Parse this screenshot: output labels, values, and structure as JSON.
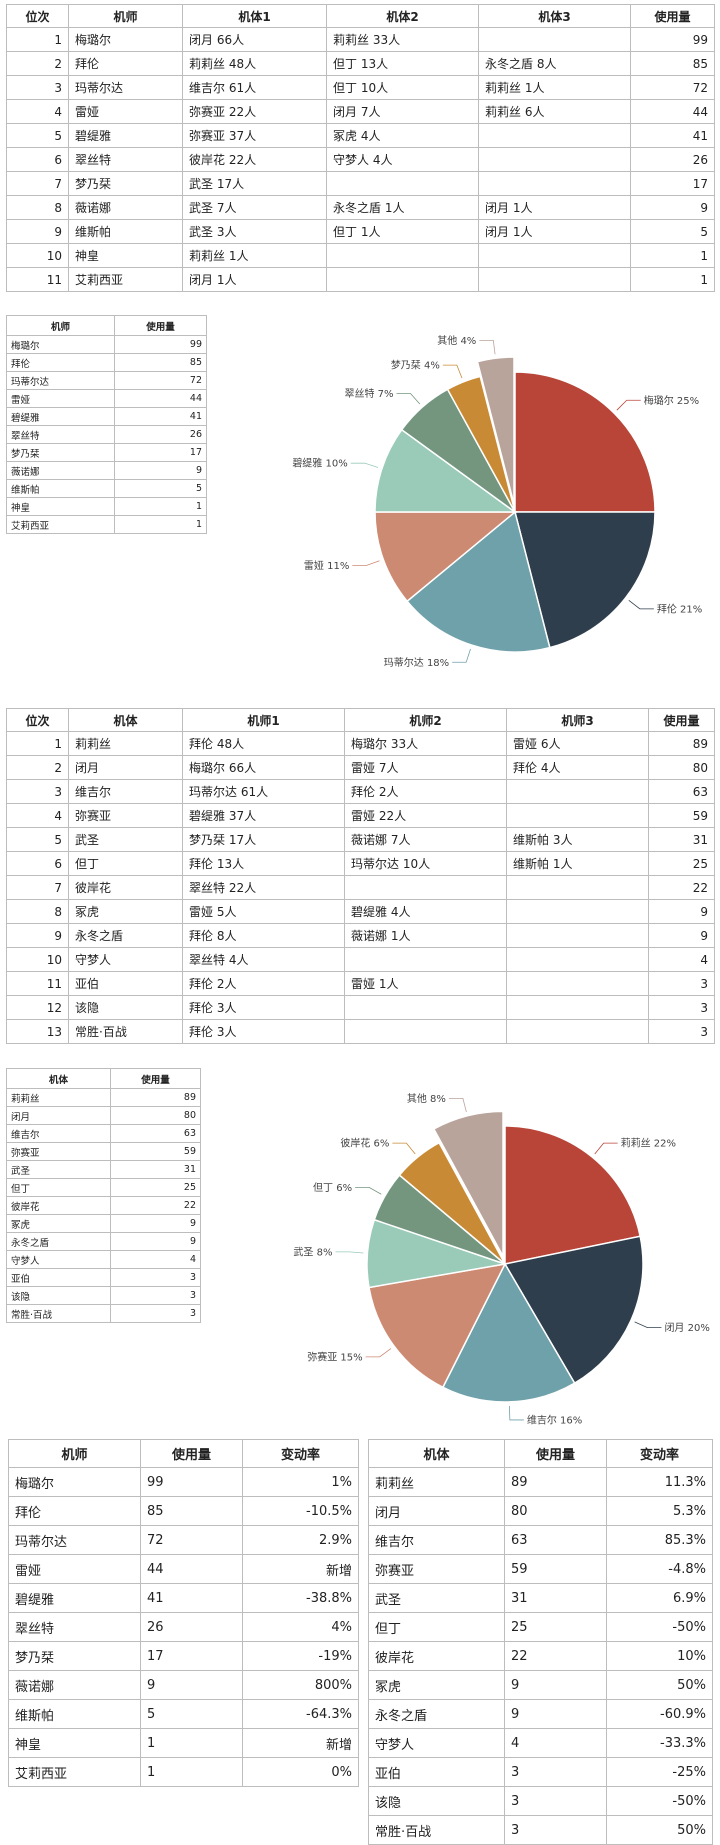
{
  "table1": {
    "headers": [
      "位次",
      "机师",
      "机体1",
      "机体2",
      "机体3",
      "使用量"
    ],
    "rows": [
      [
        "1",
        "梅璐尔",
        "闭月 66人",
        "莉莉丝 33人",
        "",
        "99"
      ],
      [
        "2",
        "拜伦",
        "莉莉丝 48人",
        "但丁 13人",
        "永冬之盾 8人",
        "85"
      ],
      [
        "3",
        "玛蒂尔达",
        "维吉尔 61人",
        "但丁 10人",
        "莉莉丝 1人",
        "72"
      ],
      [
        "4",
        "雷娅",
        "弥赛亚 22人",
        "闭月 7人",
        "莉莉丝 6人",
        "44"
      ],
      [
        "5",
        "碧缇雅",
        "弥赛亚 37人",
        "冢虎 4人",
        "",
        "41"
      ],
      [
        "6",
        "翠丝特",
        "彼岸花 22人",
        "守梦人 4人",
        "",
        "26"
      ],
      [
        "7",
        "梦乃栞",
        "武圣 17人",
        "",
        "",
        "17"
      ],
      [
        "8",
        "薇诺娜",
        "武圣 7人",
        "永冬之盾 1人",
        "闭月 1人",
        "9"
      ],
      [
        "9",
        "维斯帕",
        "武圣 3人",
        "但丁 1人",
        "闭月 1人",
        "5"
      ],
      [
        "10",
        "神皇",
        "莉莉丝 1人",
        "",
        "",
        "1"
      ],
      [
        "11",
        "艾莉西亚",
        "闭月 1人",
        "",
        "",
        "1"
      ]
    ]
  },
  "small1": {
    "headers": [
      "机师",
      "使用量"
    ],
    "rows": [
      [
        "梅璐尔",
        "99"
      ],
      [
        "拜伦",
        "85"
      ],
      [
        "玛蒂尔达",
        "72"
      ],
      [
        "雷娅",
        "44"
      ],
      [
        "碧缇雅",
        "41"
      ],
      [
        "翠丝特",
        "26"
      ],
      [
        "梦乃栞",
        "17"
      ],
      [
        "薇诺娜",
        "9"
      ],
      [
        "维斯帕",
        "5"
      ],
      [
        "神皇",
        "1"
      ],
      [
        "艾莉西亚",
        "1"
      ]
    ]
  },
  "chart_data": [
    {
      "type": "pie",
      "slices": [
        {
          "label": "梅璐尔 25%",
          "value": 25,
          "color": "#b84538"
        },
        {
          "label": "拜伦 21%",
          "value": 21,
          "color": "#2f3e4d"
        },
        {
          "label": "玛蒂尔达 18%",
          "value": 18,
          "color": "#6fa1aa"
        },
        {
          "label": "雷娅 11%",
          "value": 11,
          "color": "#cd8a72"
        },
        {
          "label": "碧缇雅 10%",
          "value": 10,
          "color": "#9acbb8"
        },
        {
          "label": "翠丝特 7%",
          "value": 7,
          "color": "#74967f"
        },
        {
          "label": "梦乃栞 4%",
          "value": 4,
          "color": "#c98a36"
        },
        {
          "label": "其他 4%",
          "value": 4,
          "color": "#b9a49c"
        }
      ]
    },
    {
      "type": "pie",
      "slices": [
        {
          "label": "莉莉丝 22%",
          "value": 22,
          "color": "#b84538"
        },
        {
          "label": "闭月 20%",
          "value": 20,
          "color": "#2f3e4d"
        },
        {
          "label": "维吉尔 16%",
          "value": 16,
          "color": "#6fa1aa"
        },
        {
          "label": "弥赛亚 15%",
          "value": 15,
          "color": "#cd8a72"
        },
        {
          "label": "武圣 8%",
          "value": 8,
          "color": "#9acbb8"
        },
        {
          "label": "但丁 6%",
          "value": 6,
          "color": "#74967f"
        },
        {
          "label": "彼岸花 6%",
          "value": 6,
          "color": "#c98a36"
        },
        {
          "label": "其他 8%",
          "value": 8,
          "color": "#b9a49c"
        }
      ]
    }
  ],
  "table2": {
    "headers": [
      "位次",
      "机体",
      "机师1",
      "机师2",
      "机师3",
      "使用量"
    ],
    "rows": [
      [
        "1",
        "莉莉丝",
        "拜伦 48人",
        "梅璐尔 33人",
        "雷娅 6人",
        "89"
      ],
      [
        "2",
        "闭月",
        "梅璐尔 66人",
        "雷娅 7人",
        "拜伦 4人",
        "80"
      ],
      [
        "3",
        "维吉尔",
        "玛蒂尔达 61人",
        "拜伦 2人",
        "",
        "63"
      ],
      [
        "4",
        "弥赛亚",
        "碧缇雅 37人",
        "雷娅 22人",
        "",
        "59"
      ],
      [
        "5",
        "武圣",
        "梦乃栞 17人",
        "薇诺娜 7人",
        "维斯帕 3人",
        "31"
      ],
      [
        "6",
        "但丁",
        "拜伦 13人",
        "玛蒂尔达 10人",
        "维斯帕 1人",
        "25"
      ],
      [
        "7",
        "彼岸花",
        "翠丝特 22人",
        "",
        "",
        "22"
      ],
      [
        "8",
        "冢虎",
        "雷娅 5人",
        "碧缇雅 4人",
        "",
        "9"
      ],
      [
        "9",
        "永冬之盾",
        "拜伦 8人",
        "薇诺娜 1人",
        "",
        "9"
      ],
      [
        "10",
        "守梦人",
        "翠丝特 4人",
        "",
        "",
        "4"
      ],
      [
        "11",
        "亚伯",
        "拜伦 2人",
        "雷娅 1人",
        "",
        "3"
      ],
      [
        "12",
        "该隐",
        "拜伦 3人",
        "",
        "",
        "3"
      ],
      [
        "13",
        "常胜·百战",
        "拜伦 3人",
        "",
        "",
        "3"
      ]
    ]
  },
  "small2": {
    "headers": [
      "机体",
      "使用量"
    ],
    "rows": [
      [
        "莉莉丝",
        "89"
      ],
      [
        "闭月",
        "80"
      ],
      [
        "维吉尔",
        "63"
      ],
      [
        "弥赛亚",
        "59"
      ],
      [
        "武圣",
        "31"
      ],
      [
        "但丁",
        "25"
      ],
      [
        "彼岸花",
        "22"
      ],
      [
        "冢虎",
        "9"
      ],
      [
        "永冬之盾",
        "9"
      ],
      [
        "守梦人",
        "4"
      ],
      [
        "亚伯",
        "3"
      ],
      [
        "该隐",
        "3"
      ],
      [
        "常胜·百战",
        "3"
      ]
    ]
  },
  "change_pilot": {
    "headers": [
      "机师",
      "使用量",
      "变动率"
    ],
    "rows": [
      [
        "梅璐尔",
        "99",
        "1%"
      ],
      [
        "拜伦",
        "85",
        "-10.5%"
      ],
      [
        "玛蒂尔达",
        "72",
        "2.9%"
      ],
      [
        "雷娅",
        "44",
        "新增"
      ],
      [
        "碧缇雅",
        "41",
        "-38.8%"
      ],
      [
        "翠丝特",
        "26",
        "4%"
      ],
      [
        "梦乃栞",
        "17",
        "-19%"
      ],
      [
        "薇诺娜",
        "9",
        "800%"
      ],
      [
        "维斯帕",
        "5",
        "-64.3%"
      ],
      [
        "神皇",
        "1",
        "新增"
      ],
      [
        "艾莉西亚",
        "1",
        "0%"
      ]
    ]
  },
  "change_mech": {
    "headers": [
      "机体",
      "使用量",
      "变动率"
    ],
    "rows": [
      [
        "莉莉丝",
        "89",
        "11.3%"
      ],
      [
        "闭月",
        "80",
        "5.3%"
      ],
      [
        "维吉尔",
        "63",
        "85.3%"
      ],
      [
        "弥赛亚",
        "59",
        "-4.8%"
      ],
      [
        "武圣",
        "31",
        "6.9%"
      ],
      [
        "但丁",
        "25",
        "-50%"
      ],
      [
        "彼岸花",
        "22",
        "10%"
      ],
      [
        "冢虎",
        "9",
        "50%"
      ],
      [
        "永冬之盾",
        "9",
        "-60.9%"
      ],
      [
        "守梦人",
        "4",
        "-33.3%"
      ],
      [
        "亚伯",
        "3",
        "-25%"
      ],
      [
        "该隐",
        "3",
        "-50%"
      ],
      [
        "常胜·百战",
        "3",
        "50%"
      ]
    ]
  }
}
